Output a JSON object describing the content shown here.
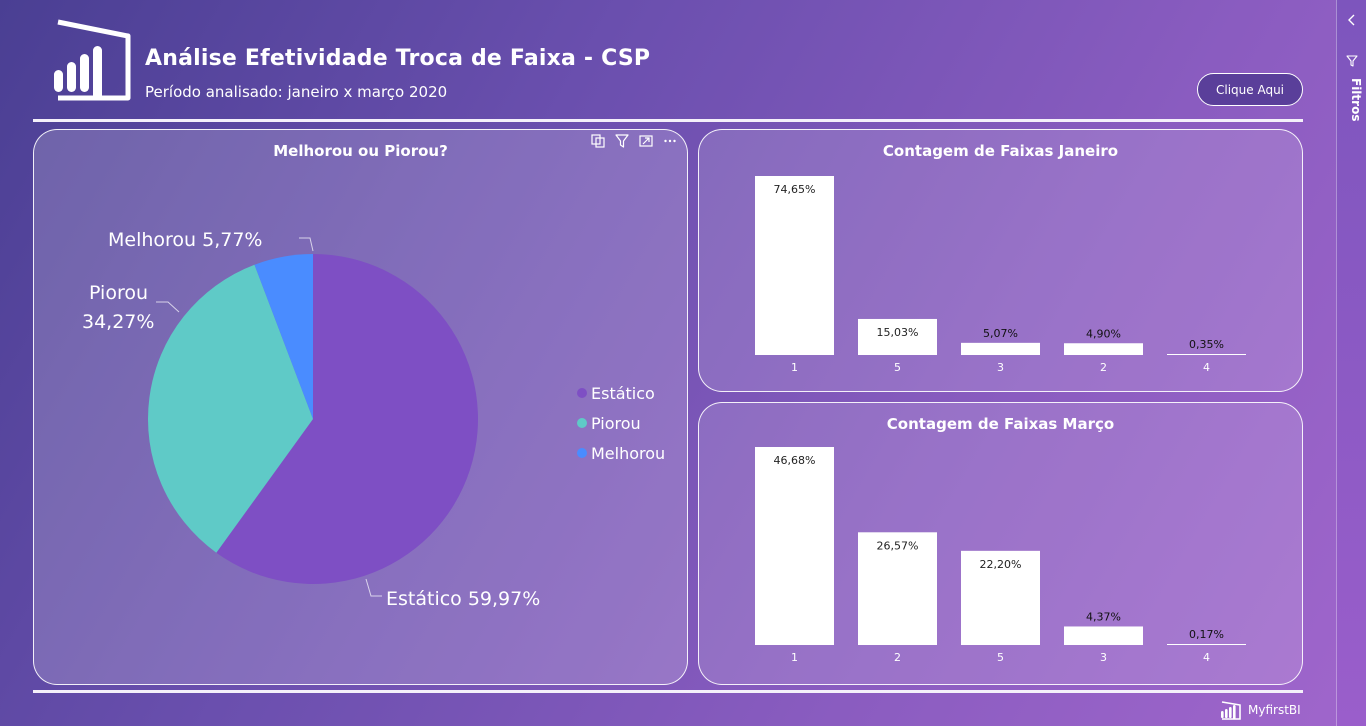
{
  "header": {
    "title": "Análise Efetividade Troca de Faixa - CSP",
    "subtitle": "Período analisado: janeiro x março 2020",
    "cta_label": "Clique Aqui"
  },
  "filters_pane": {
    "label": "Filtros"
  },
  "brand": {
    "label": "MyfirstBI"
  },
  "colors": {
    "estatico": "#7e4fc4",
    "piorou": "#5fcac7",
    "melhorou": "#4a8cff",
    "bar": "#ffffff",
    "panel_border": "#ffffff"
  },
  "pie_panel": {
    "title": "Melhorou ou Piorou?",
    "tool_icons": [
      "copy-icon",
      "filter-icon",
      "focus-mode-icon",
      "more-options-icon"
    ],
    "legend": [
      {
        "label": "Estático",
        "color": "#7e4fc4"
      },
      {
        "label": "Piorou",
        "color": "#5fcac7"
      },
      {
        "label": "Melhorou",
        "color": "#4a8cff"
      }
    ]
  },
  "jan_panel": {
    "title": "Contagem de Faixas Janeiro"
  },
  "mar_panel": {
    "title": "Contagem de Faixas Março"
  },
  "chart_data": [
    {
      "type": "pie",
      "title": "Melhorou ou Piorou?",
      "slices": [
        {
          "label": "Estático",
          "value": 59.97,
          "display": "Estático 59,97%"
        },
        {
          "label": "Piorou",
          "value": 34.27,
          "display_line1": "Piorou",
          "display_line2": "34,27%"
        },
        {
          "label": "Melhorou",
          "value": 5.77,
          "display": "Melhorou 5,77%"
        }
      ],
      "legend_position": "right"
    },
    {
      "type": "bar",
      "title": "Contagem de Faixas Janeiro",
      "categories": [
        "1",
        "5",
        "3",
        "2",
        "4"
      ],
      "values": [
        74.65,
        15.03,
        5.07,
        4.9,
        0.35
      ],
      "labels": [
        "74,65%",
        "15,03%",
        "5,07%",
        "4,90%",
        "0,35%"
      ],
      "ylim": [
        0,
        74.65
      ],
      "grid": false
    },
    {
      "type": "bar",
      "title": "Contagem de Faixas Março",
      "categories": [
        "1",
        "2",
        "5",
        "3",
        "4"
      ],
      "values": [
        46.68,
        26.57,
        22.2,
        4.37,
        0.17
      ],
      "labels": [
        "46,68%",
        "26,57%",
        "22,20%",
        "4,37%",
        "0,17%"
      ],
      "ylim": [
        0,
        46.68
      ],
      "grid": false
    }
  ]
}
